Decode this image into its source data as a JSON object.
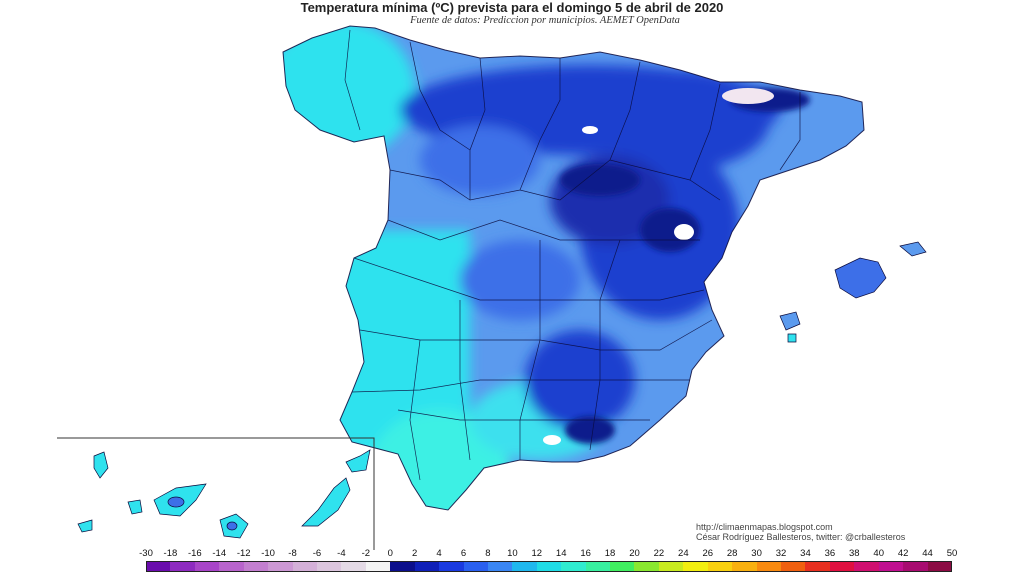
{
  "title": "Temperatura mínima (ºC) prevista para el domingo 5 de abril de 2020",
  "subtitle": "Fuente de datos: Prediccion por municipios. AEMET OpenData",
  "credits": {
    "url": "http://climaenmapas.blogspot.com",
    "author": "César Rodríguez Ballesteros, twitter: @crballesteros"
  },
  "legend": {
    "ticks": [
      "-30",
      "-18",
      "-16",
      "-14",
      "-12",
      "-10",
      "-8",
      "-6",
      "-4",
      "-2",
      "0",
      "2",
      "4",
      "6",
      "8",
      "10",
      "12",
      "14",
      "16",
      "18",
      "20",
      "22",
      "24",
      "26",
      "28",
      "30",
      "32",
      "34",
      "36",
      "38",
      "40",
      "42",
      "44",
      "50"
    ],
    "colors": [
      "#6a0dad",
      "#8e2bc0",
      "#a845c8",
      "#b864cc",
      "#c37fd0",
      "#cc98d4",
      "#d4b0d8",
      "#dcc6de",
      "#e4dae6",
      "#f4f4f4",
      "#0c0f8c",
      "#1020b8",
      "#1a3ae0",
      "#2a60f0",
      "#3a86f4",
      "#20b8ee",
      "#20dce6",
      "#30ecd0",
      "#38f0a0",
      "#40ee60",
      "#8ae830",
      "#c8ea20",
      "#f2ee10",
      "#f8d010",
      "#f8b010",
      "#f88a10",
      "#f06010",
      "#e83020",
      "#e01040",
      "#d01070",
      "#c01090",
      "#a80c70",
      "#8c0c44"
    ]
  },
  "map": {
    "regions": [
      "Península Ibérica",
      "Islas Baleares",
      "Islas Canarias"
    ],
    "colors": {
      "cold_core": "#0d1b8c",
      "dark_blue": "#1f3fcf",
      "mid_blue": "#3d6fe8",
      "light_blue": "#5b9aee",
      "cyan": "#2fe2ee",
      "aqua": "#3ef0e4",
      "frost": "#f2e6f0"
    }
  }
}
